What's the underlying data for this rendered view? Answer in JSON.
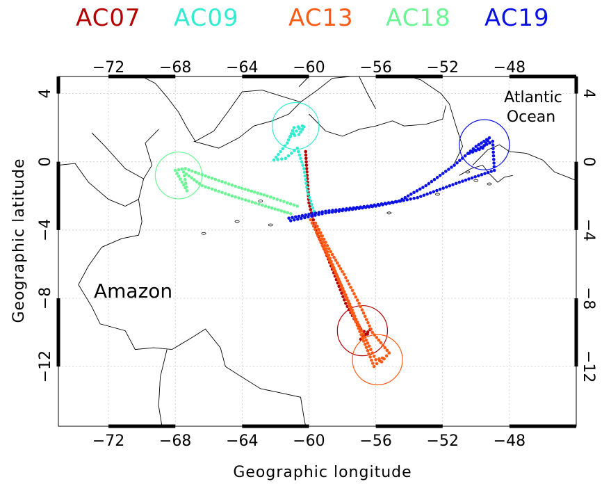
{
  "legend": [
    {
      "label": "AC07",
      "color": "#b40000"
    },
    {
      "label": "AC09",
      "color": "#33ecd0"
    },
    {
      "label": "AC13",
      "color": "#ff5a14"
    },
    {
      "label": "AC18",
      "color": "#6cf594"
    },
    {
      "label": "AC19",
      "color": "#0a10e6"
    }
  ],
  "axes": {
    "xlabel": "Geographic longitude",
    "ylabel": "Geographic latitude",
    "xlim": [
      -75,
      -44
    ],
    "ylim": [
      -15.5,
      5
    ],
    "xticks": [
      -72,
      -68,
      -64,
      -60,
      -56,
      -52,
      -48
    ],
    "yticks": [
      4,
      0,
      -4,
      -8,
      -12
    ],
    "xtick_labels": [
      "−72",
      "−68",
      "−64",
      "−60",
      "−56",
      "−52",
      "−48"
    ],
    "ytick_labels": [
      "4",
      "0",
      "−4",
      "−8",
      "−12"
    ],
    "grid": true
  },
  "labels": {
    "amazon": "Amazon",
    "atlantic_line1": "Atlantic",
    "atlantic_line2": "Ocean"
  },
  "chart_data": {
    "type": "scatter",
    "series": [
      {
        "name": "AC07",
        "color": "#b40000",
        "circle": {
          "lon": -56.8,
          "lat": -9.9,
          "radius_deg": 1.5
        },
        "track": [
          [
            -60.2,
            0.6
          ],
          [
            -60.1,
            -1.0
          ],
          [
            -60.0,
            -2.4
          ],
          [
            -59.8,
            -3.2
          ],
          [
            -59.5,
            -4.2
          ],
          [
            -59.0,
            -5.3
          ],
          [
            -58.6,
            -6.3
          ],
          [
            -58.2,
            -7.3
          ],
          [
            -57.8,
            -8.3
          ],
          [
            -57.3,
            -9.2
          ],
          [
            -56.9,
            -9.8
          ],
          [
            -56.5,
            -10.1
          ],
          [
            -56.9,
            -10.4
          ],
          [
            -56.2,
            -9.7
          ]
        ]
      },
      {
        "name": "AC09",
        "color": "#33ecd0",
        "circle": {
          "lon": -60.8,
          "lat": 2.1,
          "radius_deg": 1.4
        },
        "track": [
          [
            -59.7,
            -2.9
          ],
          [
            -60.1,
            -1.7
          ],
          [
            -60.3,
            -0.4
          ],
          [
            -60.7,
            0.8
          ],
          [
            -61.4,
            0.2
          ],
          [
            -62.1,
            0.1
          ],
          [
            -61.3,
            1.1
          ],
          [
            -60.9,
            2.0
          ],
          [
            -60.4,
            2.1
          ],
          [
            -61.1,
            1.5
          ],
          [
            -60.6,
            1.6
          ],
          [
            -60.2,
            2.2
          ]
        ]
      },
      {
        "name": "AC13",
        "color": "#ff5a14",
        "circle": {
          "lon": -55.9,
          "lat": -11.6,
          "radius_deg": 1.5
        },
        "track": [
          [
            -59.9,
            -3.4
          ],
          [
            -59.2,
            -4.9
          ],
          [
            -58.5,
            -6.3
          ],
          [
            -57.8,
            -7.8
          ],
          [
            -57.1,
            -9.4
          ],
          [
            -56.4,
            -10.8
          ],
          [
            -56.0,
            -11.6
          ],
          [
            -55.6,
            -11.5
          ],
          [
            -56.1,
            -12.0
          ],
          [
            -59.6,
            -3.6
          ],
          [
            -58.8,
            -5.1
          ],
          [
            -57.9,
            -6.6
          ],
          [
            -57.0,
            -8.3
          ],
          [
            -56.2,
            -10.0
          ],
          [
            -55.2,
            -11.2
          ],
          [
            -55.8,
            -11.9
          ]
        ]
      },
      {
        "name": "AC18",
        "color": "#6cf594",
        "circle": {
          "lon": -67.8,
          "lat": -0.8,
          "radius_deg": 1.4
        },
        "track": [
          [
            -60.7,
            -2.6
          ],
          [
            -62.5,
            -2.0
          ],
          [
            -64.2,
            -1.5
          ],
          [
            -66.0,
            -0.9
          ],
          [
            -67.4,
            -0.4
          ],
          [
            -68.0,
            -0.5
          ],
          [
            -67.3,
            -1.7
          ],
          [
            -67.5,
            -0.6
          ],
          [
            -66.4,
            -1.4
          ],
          [
            -64.6,
            -2.0
          ],
          [
            -62.6,
            -2.6
          ],
          [
            -60.9,
            -3.1
          ]
        ]
      },
      {
        "name": "AC19",
        "color": "#0a10e6",
        "circle": {
          "lon": -49.5,
          "lat": 1.0,
          "radius_deg": 1.5
        },
        "track": [
          [
            -61.2,
            -3.3
          ],
          [
            -59.0,
            -2.9
          ],
          [
            -56.5,
            -2.6
          ],
          [
            -54.6,
            -2.3
          ],
          [
            -53.0,
            -1.4
          ],
          [
            -51.3,
            -0.2
          ],
          [
            -50.0,
            0.9
          ],
          [
            -49.2,
            1.4
          ],
          [
            -49.6,
            0.8
          ],
          [
            -50.4,
            0.5
          ],
          [
            -49.0,
            1.2
          ],
          [
            -48.9,
            -0.5
          ],
          [
            -51.0,
            -1.2
          ],
          [
            -53.5,
            -2.1
          ],
          [
            -56.0,
            -2.6
          ],
          [
            -59.0,
            -3.0
          ],
          [
            -61.3,
            -3.5
          ]
        ]
      }
    ]
  }
}
